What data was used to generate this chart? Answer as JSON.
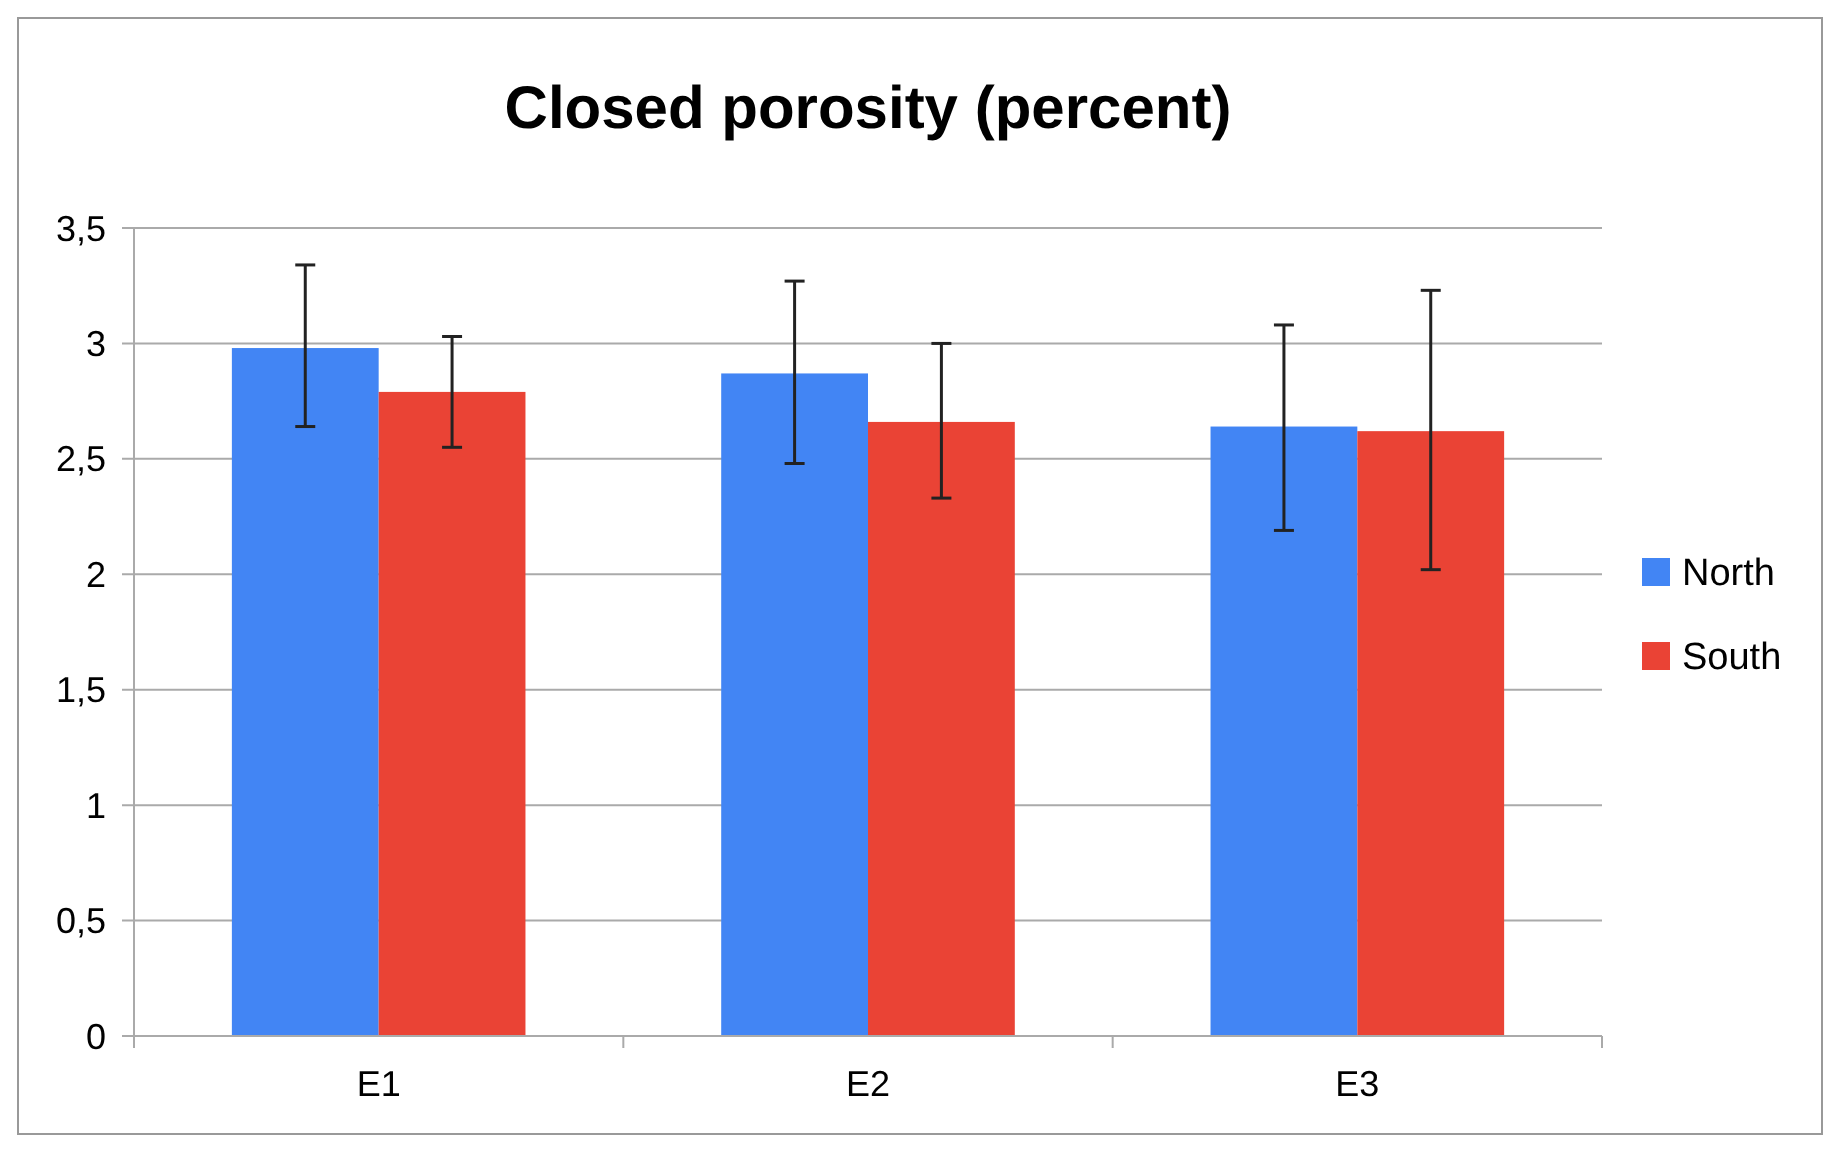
{
  "chart_data": {
    "type": "bar",
    "title": "Closed porosity (percent)",
    "categories": [
      "E1",
      "E2",
      "E3"
    ],
    "series": [
      {
        "name": "North",
        "color": "#4285f4",
        "values": [
          2.98,
          2.87,
          2.64
        ],
        "errors": [
          [
            2.64,
            3.34
          ],
          [
            2.48,
            3.27
          ],
          [
            2.19,
            3.08
          ]
        ]
      },
      {
        "name": "South",
        "color": "#ea4335",
        "values": [
          2.79,
          2.66,
          2.62
        ],
        "errors": [
          [
            2.55,
            3.03
          ],
          [
            2.33,
            3.0
          ],
          [
            2.02,
            3.23
          ]
        ]
      }
    ],
    "ylim": [
      0,
      3.5
    ],
    "yticks": [
      {
        "value": 0,
        "label": "0"
      },
      {
        "value": 0.5,
        "label": "0,5"
      },
      {
        "value": 1,
        "label": "1"
      },
      {
        "value": 1.5,
        "label": "1,5"
      },
      {
        "value": 2,
        "label": "2"
      },
      {
        "value": 2.5,
        "label": "2,5"
      },
      {
        "value": 3,
        "label": "3"
      },
      {
        "value": 3.5,
        "label": "3,5"
      }
    ],
    "grid": "y",
    "legend": "right"
  }
}
